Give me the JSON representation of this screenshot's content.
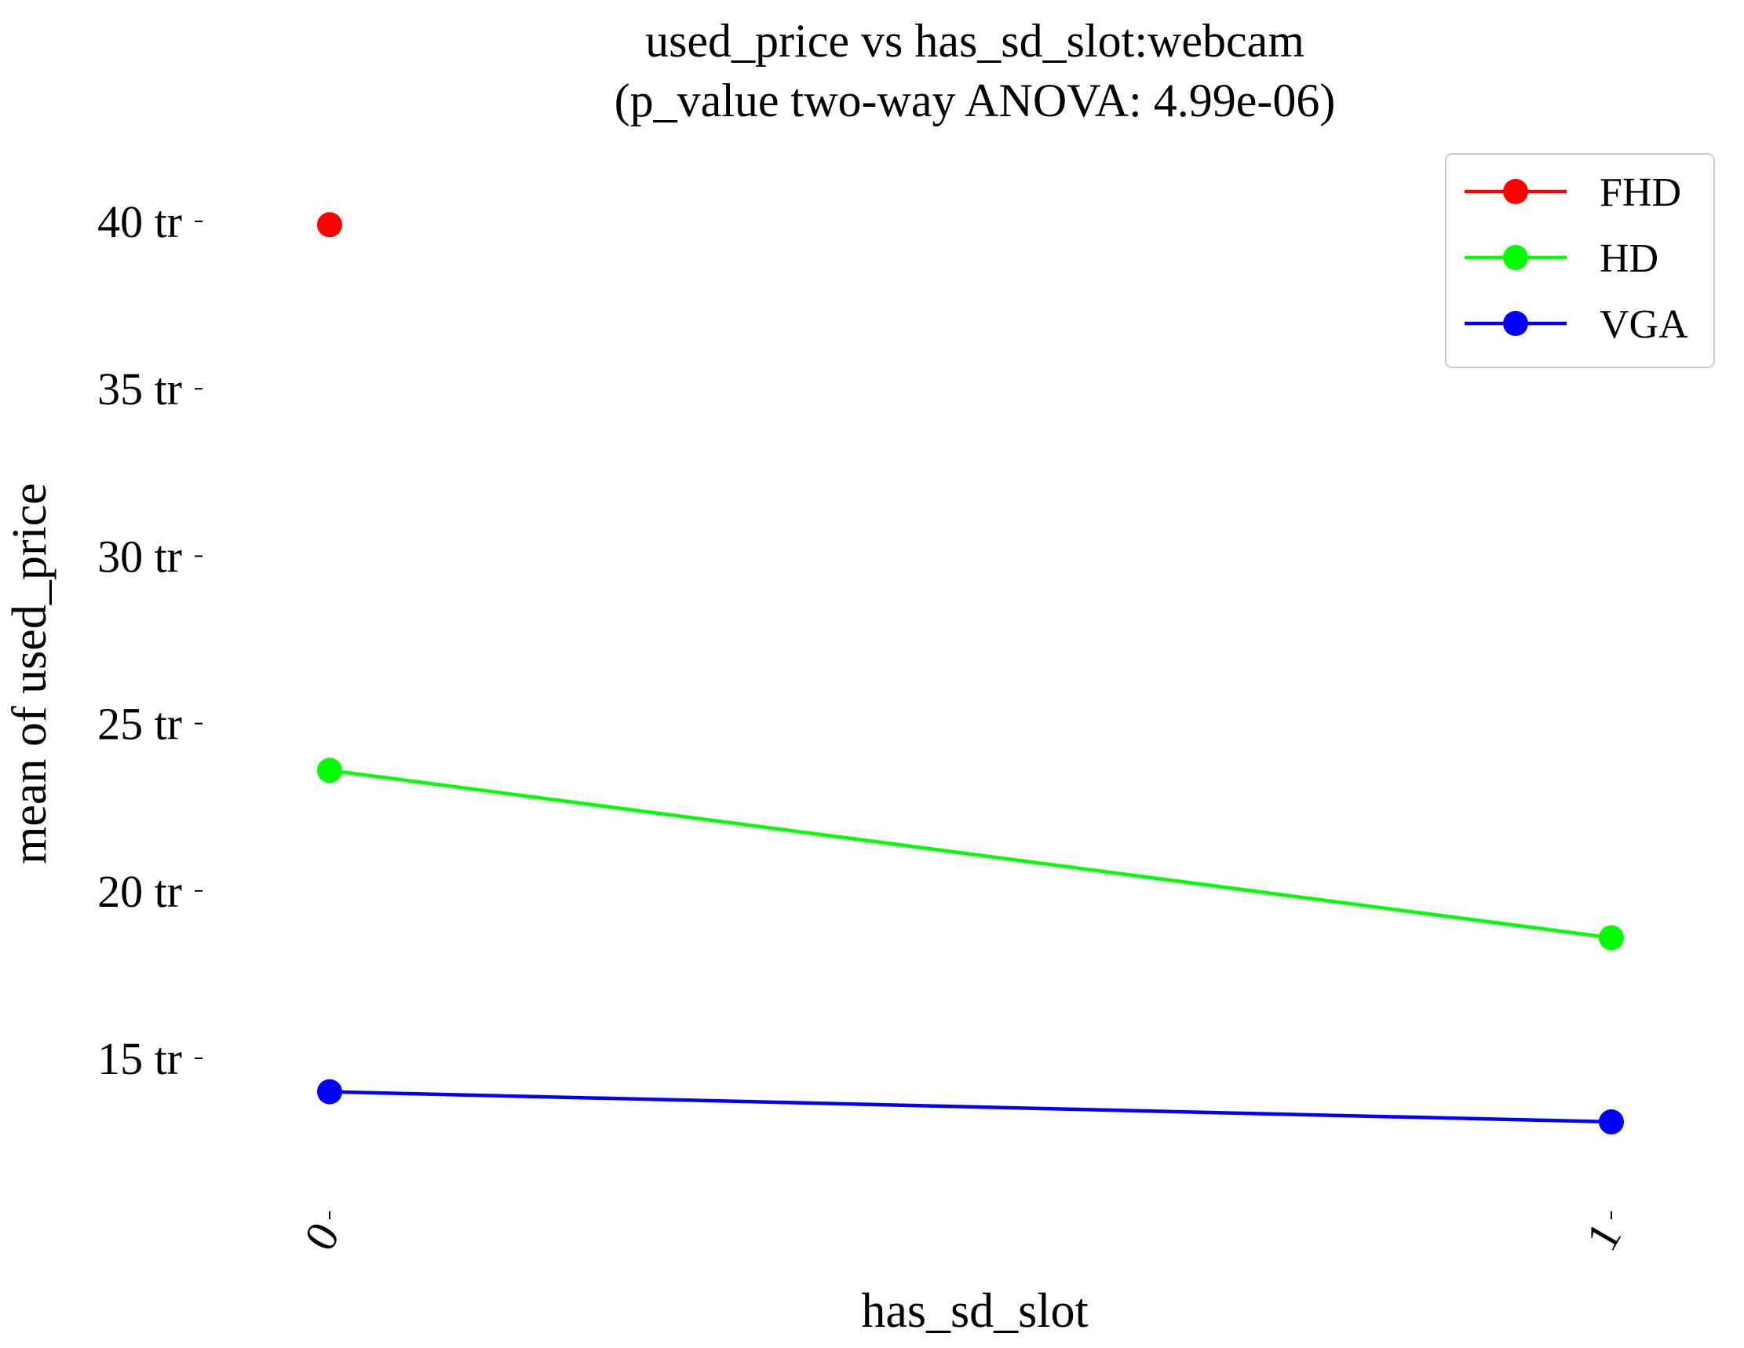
{
  "chart_data": {
    "type": "line",
    "title": "used_price vs has_sd_slot:webcam",
    "subtitle": "(p_value two-way ANOVA: 4.99e-06)",
    "xlabel": "has_sd_slot",
    "ylabel": "mean of used_price",
    "categories": [
      "0",
      "1"
    ],
    "ylim": [
      10,
      42
    ],
    "yticks": [
      {
        "value": 15,
        "label": "15 tr"
      },
      {
        "value": 20,
        "label": "20 tr"
      },
      {
        "value": 25,
        "label": "25 tr"
      },
      {
        "value": 30,
        "label": "30 tr"
      },
      {
        "value": 35,
        "label": "35 tr"
      },
      {
        "value": 40,
        "label": "40 tr"
      }
    ],
    "series": [
      {
        "name": "FHD",
        "color": "#ff0000",
        "values": [
          39.9,
          null
        ]
      },
      {
        "name": "HD",
        "color": "#00ff00",
        "values": [
          23.6,
          18.6
        ]
      },
      {
        "name": "VGA",
        "color": "#0000ff",
        "values": [
          14.0,
          13.1
        ]
      }
    ],
    "grid": false,
    "legend": "top-right"
  }
}
